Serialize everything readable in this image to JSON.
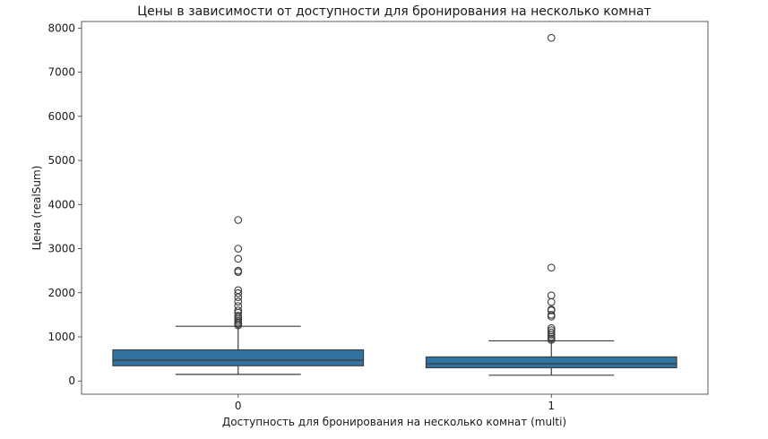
{
  "chart_data": {
    "type": "box",
    "title": "Цены в зависимости от доступности для бронирования на несколько комнат",
    "xlabel": "Доступность для бронирования на несколько комнат (multi)",
    "ylabel": "Цена (realSum)",
    "categories": [
      "0",
      "1"
    ],
    "ylim": [
      -300,
      8150
    ],
    "yticks": [
      0,
      1000,
      2000,
      3000,
      4000,
      5000,
      6000,
      7000,
      8000
    ],
    "grid": false,
    "color": "#3274a1",
    "boxes": [
      {
        "category": "0",
        "whisker_low": 150,
        "q1": 345,
        "median": 470,
        "q3": 705,
        "whisker_high": 1240,
        "outliers": [
          1260,
          1290,
          1320,
          1360,
          1400,
          1440,
          1480,
          1550,
          1600,
          1700,
          1800,
          1900,
          1990,
          2060,
          2470,
          2500,
          2770,
          3000,
          3650
        ]
      },
      {
        "category": "1",
        "whisker_low": 130,
        "q1": 300,
        "median": 390,
        "q3": 545,
        "whisker_high": 910,
        "outliers": [
          930,
          960,
          1000,
          1050,
          1100,
          1150,
          1200,
          1460,
          1500,
          1600,
          1620,
          1790,
          1940,
          2570,
          7780
        ]
      }
    ]
  }
}
